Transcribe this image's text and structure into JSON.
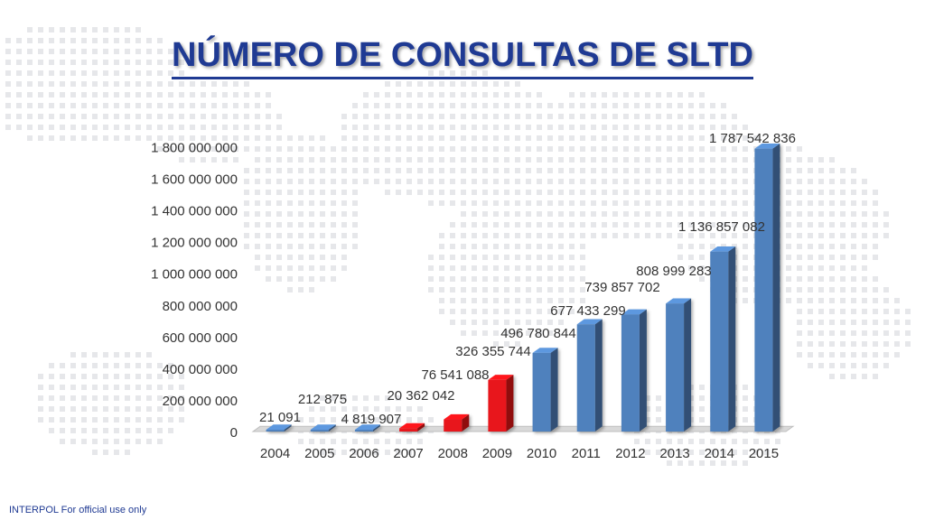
{
  "slide": {
    "title": "NÚMERO DE CONSULTAS DE SLTD",
    "footer": "INTERPOL For official use only"
  },
  "chart_data": {
    "type": "bar",
    "categories": [
      "2004",
      "2005",
      "2006",
      "2007",
      "2008",
      "2009",
      "2010",
      "2011",
      "2012",
      "2013",
      "2014",
      "2015"
    ],
    "values": [
      21091,
      212875,
      4819907,
      20362042,
      76541088,
      326355744,
      496780844,
      677433299,
      739857702,
      808999283,
      1136857082,
      1787542836
    ],
    "data_labels": [
      "21 091",
      "212 875",
      "4 819 907",
      "20 362 042",
      "76 541 088",
      "326 355 744",
      "496 780 844",
      "677 433 299",
      "739 857 702",
      "808 999 283",
      "1 136 857 082",
      "1 787 542 836"
    ],
    "bar_colors": [
      "#4f81bd",
      "#4f81bd",
      "#4f81bd",
      "#e8141a",
      "#e8141a",
      "#e8141a",
      "#4f81bd",
      "#4f81bd",
      "#4f81bd",
      "#4f81bd",
      "#4f81bd",
      "#4f81bd"
    ],
    "y_ticks": [
      0,
      200000000,
      400000000,
      600000000,
      800000000,
      1000000000,
      1200000000,
      1400000000,
      1600000000,
      1800000000
    ],
    "y_tick_labels": [
      "0",
      "200 000 000",
      "400 000 000",
      "600 000 000",
      "800 000 000",
      "1 000 000 000",
      "1 200 000 000",
      "1 400 000 000",
      "1 600 000 000",
      "1 800 000 000"
    ],
    "ylim": [
      0,
      1800000000
    ],
    "grid": false,
    "legend": "none",
    "style": "3d-columns"
  }
}
